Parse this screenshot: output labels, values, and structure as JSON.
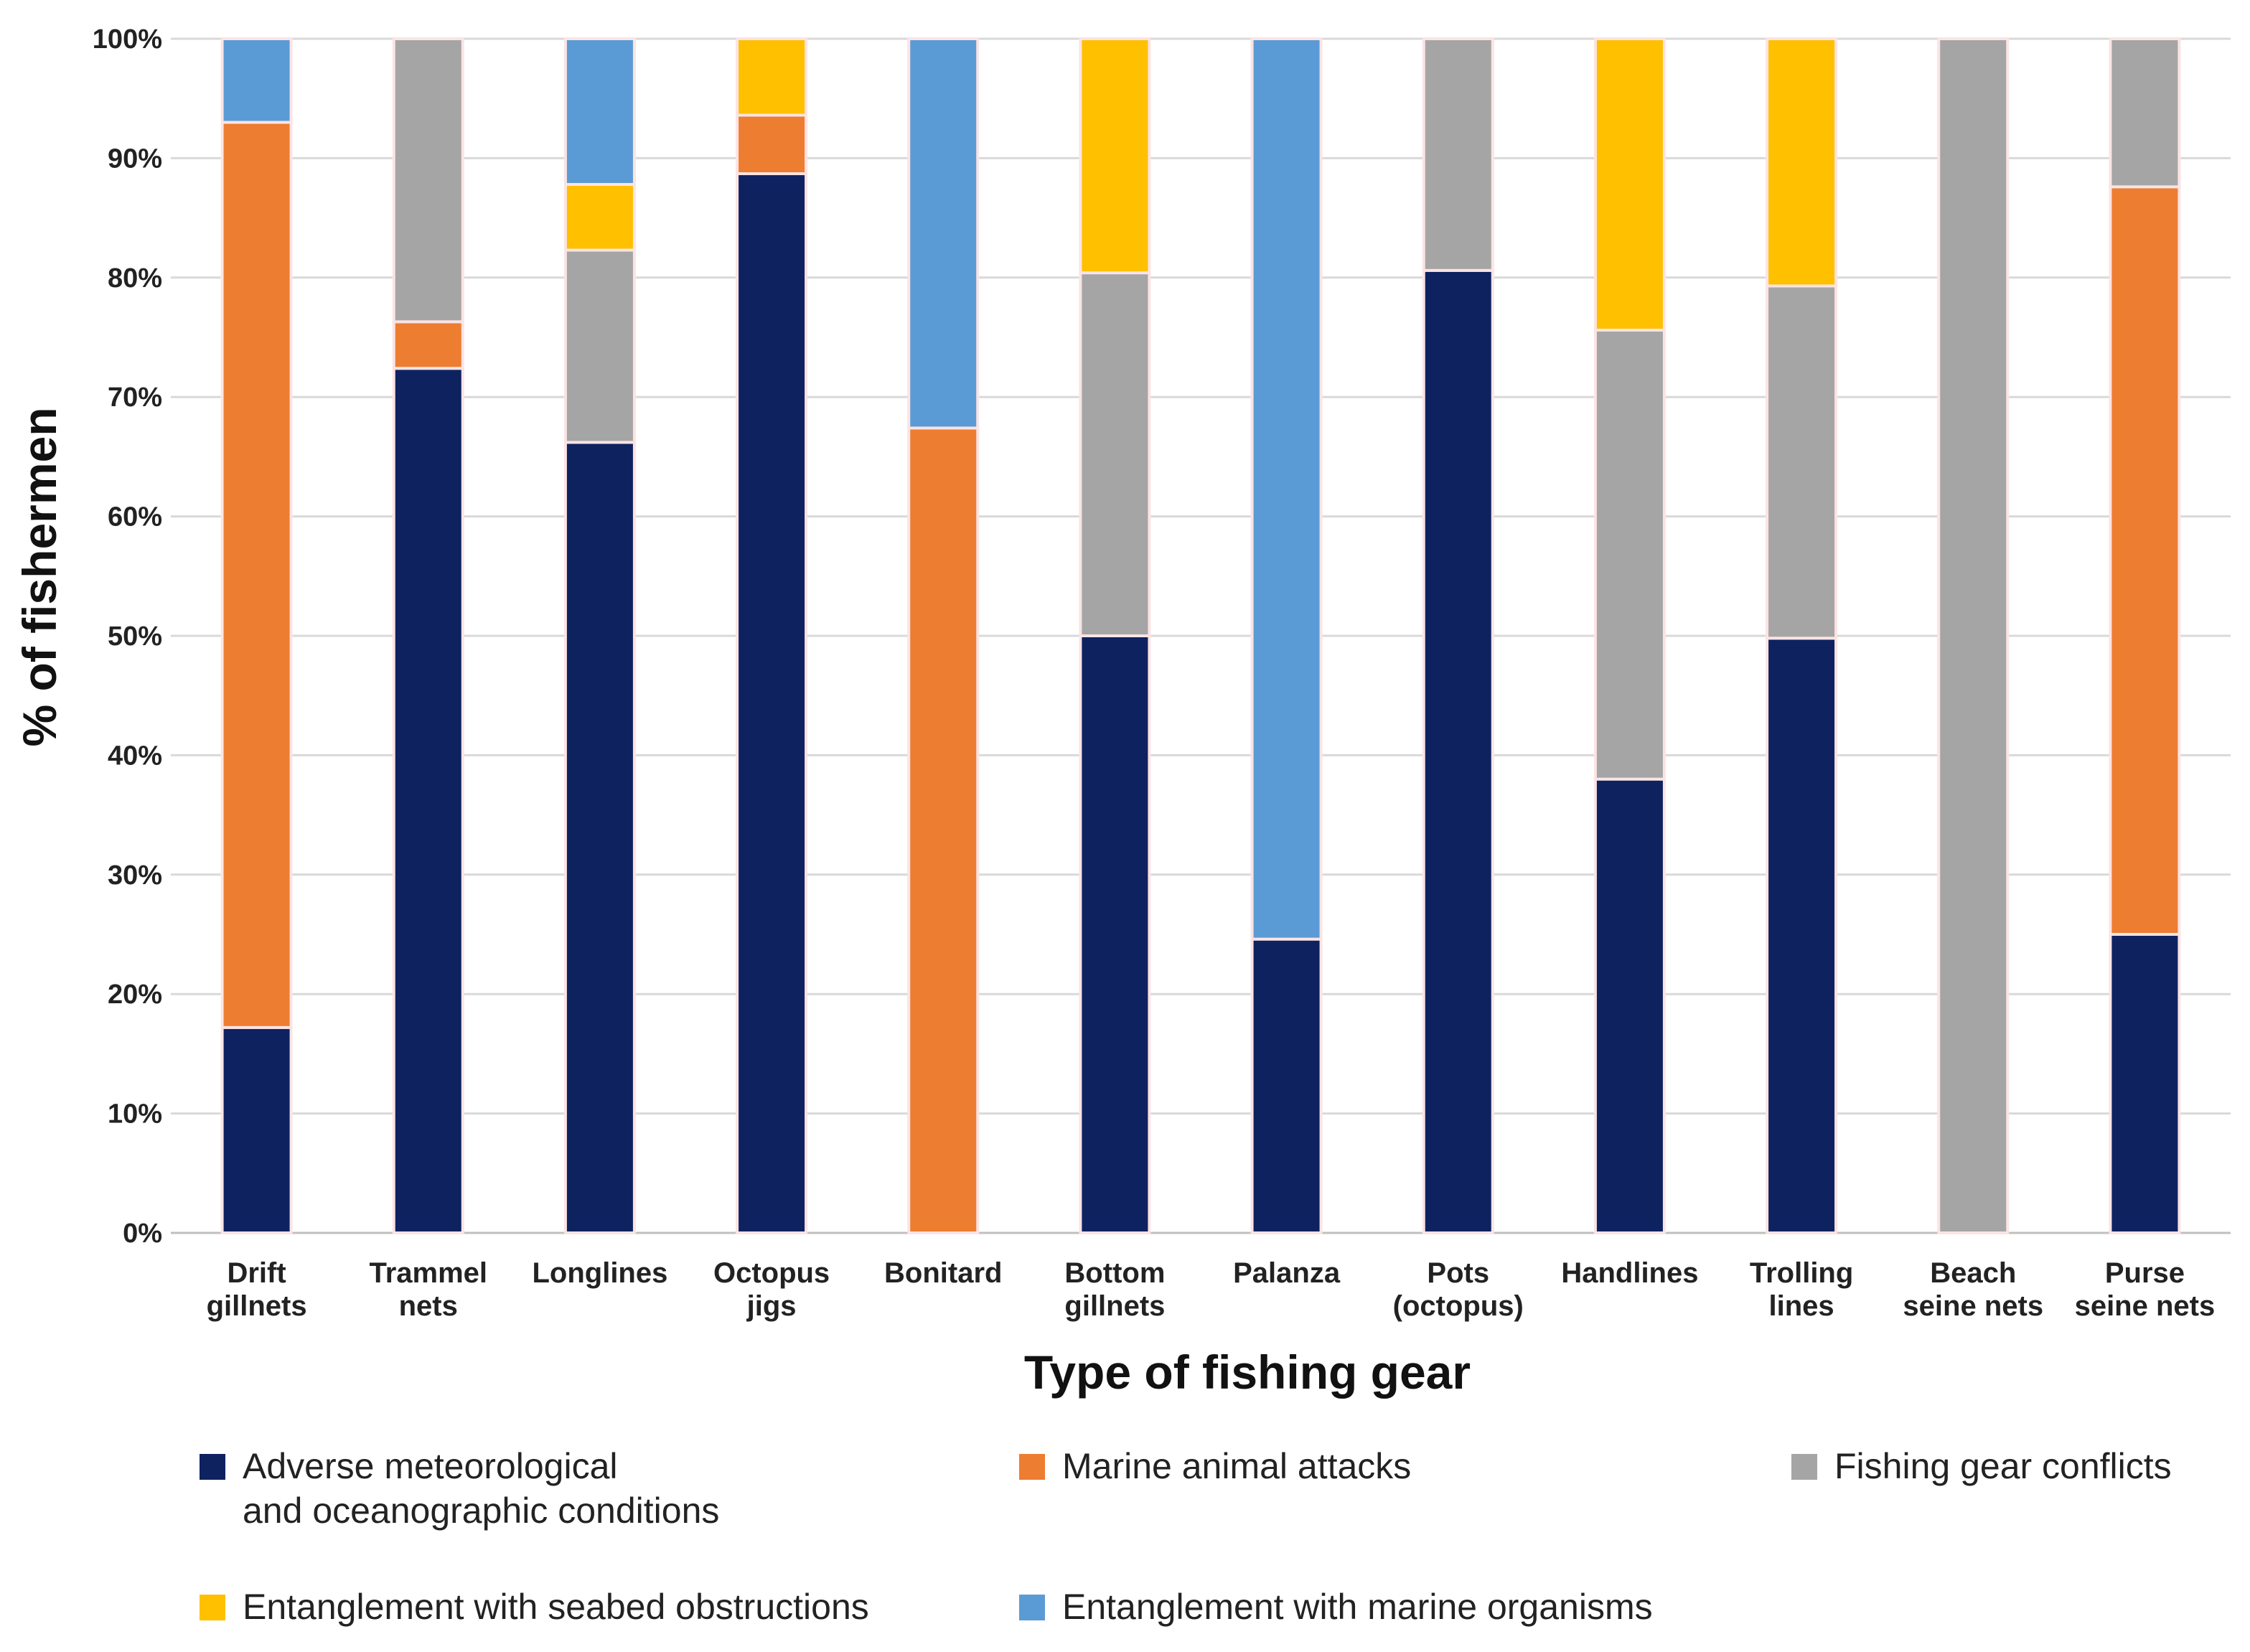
{
  "chart_data": {
    "type": "bar",
    "stacked": true,
    "title": "",
    "xlabel": "Type of fishing gear",
    "ylabel": "% of fishermen",
    "ylim": [
      0,
      100
    ],
    "yticks": [
      "0%",
      "10%",
      "20%",
      "30%",
      "40%",
      "50%",
      "60%",
      "70%",
      "80%",
      "90%",
      "100%"
    ],
    "categories": [
      [
        "Drift",
        "gillnets"
      ],
      [
        "Trammel",
        "nets"
      ],
      [
        "Longlines"
      ],
      [
        "Octopus",
        "jigs"
      ],
      [
        "Bonitard"
      ],
      [
        "Bottom",
        "gillnets"
      ],
      [
        "Palanza"
      ],
      [
        "Pots",
        "(octopus)"
      ],
      [
        "Handlines"
      ],
      [
        "Trolling",
        "lines"
      ],
      [
        "Beach",
        "seine nets"
      ],
      [
        "Purse",
        "seine nets"
      ]
    ],
    "series": [
      {
        "name": "Adverse meteorological\nand oceanographic conditions",
        "color": "#0e2260",
        "values": [
          17.2,
          72.4,
          66.2,
          88.7,
          0,
          50.0,
          24.6,
          80.6,
          38.0,
          49.8,
          0,
          25.0
        ]
      },
      {
        "name": "Marine animal attacks",
        "color": "#ed7d31",
        "values": [
          75.8,
          3.9,
          0,
          4.9,
          67.4,
          0,
          0,
          0,
          0,
          0,
          0,
          62.6
        ]
      },
      {
        "name": "Fishing gear conflicts",
        "color": "#a5a5a5",
        "values": [
          0,
          23.7,
          16.1,
          0,
          0,
          30.4,
          0,
          19.4,
          37.6,
          29.5,
          100,
          12.4
        ]
      },
      {
        "name": "Entanglement with seabed obstructions",
        "color": "#ffc000",
        "values": [
          0,
          0,
          5.5,
          6.4,
          0,
          19.6,
          0,
          0,
          24.4,
          20.7,
          0,
          0
        ]
      },
      {
        "name": "Entanglement with marine organisms",
        "color": "#5b9bd5",
        "values": [
          7.0,
          0,
          12.2,
          0,
          32.6,
          0,
          75.4,
          0,
          0,
          0,
          0,
          0
        ]
      }
    ],
    "legend_position": "bottom",
    "grid": true
  }
}
